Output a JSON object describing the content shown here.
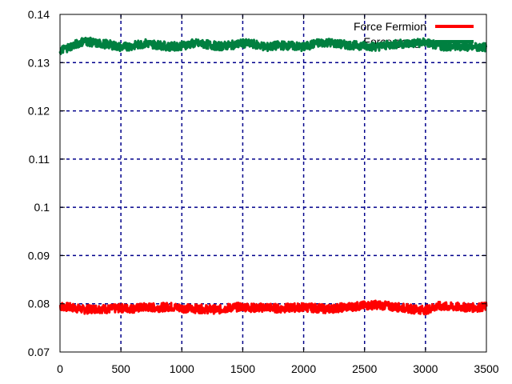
{
  "chart_data": {
    "type": "line",
    "title": "",
    "xlabel": "",
    "ylabel": "",
    "xlim": [
      0,
      3500
    ],
    "ylim": [
      0.07,
      0.14
    ],
    "x_ticks": [
      0,
      500,
      1000,
      1500,
      2000,
      2500,
      3000,
      3500
    ],
    "y_ticks": [
      0.07,
      0.08,
      0.09,
      0.1,
      0.11,
      0.12,
      0.13,
      0.14
    ],
    "x_tick_labels": [
      "0",
      "500",
      "1000",
      "1500",
      "2000",
      "2500",
      "3000",
      "3500"
    ],
    "y_tick_labels": [
      "0.07",
      "0.08",
      "0.09",
      "0.1",
      "0.11",
      "0.12",
      "0.13",
      "0.14"
    ],
    "grid": true,
    "legend_position": "top-right",
    "series": [
      {
        "name": "Force Fermion",
        "color": "#ff0000",
        "x": [
          0,
          100,
          200,
          300,
          400,
          500,
          600,
          700,
          800,
          900,
          1000,
          1100,
          1200,
          1300,
          1400,
          1500,
          1600,
          1700,
          1800,
          1900,
          2000,
          2100,
          2200,
          2300,
          2400,
          2500,
          2600,
          2700,
          2800,
          2900,
          3000,
          3100,
          3200,
          3300,
          3400,
          3500
        ],
        "y": [
          0.0795,
          0.0792,
          0.0788,
          0.079,
          0.0789,
          0.0791,
          0.079,
          0.0793,
          0.0792,
          0.0794,
          0.0791,
          0.079,
          0.0789,
          0.0788,
          0.0792,
          0.0794,
          0.0791,
          0.0793,
          0.079,
          0.0792,
          0.0793,
          0.0791,
          0.0789,
          0.0792,
          0.0794,
          0.0796,
          0.0798,
          0.0795,
          0.0792,
          0.0789,
          0.0787,
          0.0795,
          0.0794,
          0.0793,
          0.0792,
          0.0794
        ]
      },
      {
        "name": "Force gauge",
        "color": "#008040",
        "x": [
          0,
          100,
          200,
          300,
          400,
          500,
          600,
          700,
          800,
          900,
          1000,
          1100,
          1200,
          1300,
          1400,
          1500,
          1600,
          1700,
          1800,
          1900,
          2000,
          2100,
          2200,
          2300,
          2400,
          2500,
          2600,
          2700,
          2800,
          2900,
          3000,
          3100,
          3200,
          3300,
          3400,
          3500
        ],
        "y": [
          0.1325,
          0.1335,
          0.1345,
          0.134,
          0.1338,
          0.1332,
          0.1335,
          0.134,
          0.1337,
          0.1333,
          0.1335,
          0.134,
          0.1338,
          0.1334,
          0.1336,
          0.134,
          0.1338,
          0.1332,
          0.1336,
          0.1335,
          0.1332,
          0.134,
          0.1342,
          0.1338,
          0.1336,
          0.1335,
          0.1333,
          0.1337,
          0.1339,
          0.134,
          0.1342,
          0.1335,
          0.1333,
          0.1334,
          0.1333,
          0.1332
        ]
      }
    ]
  }
}
